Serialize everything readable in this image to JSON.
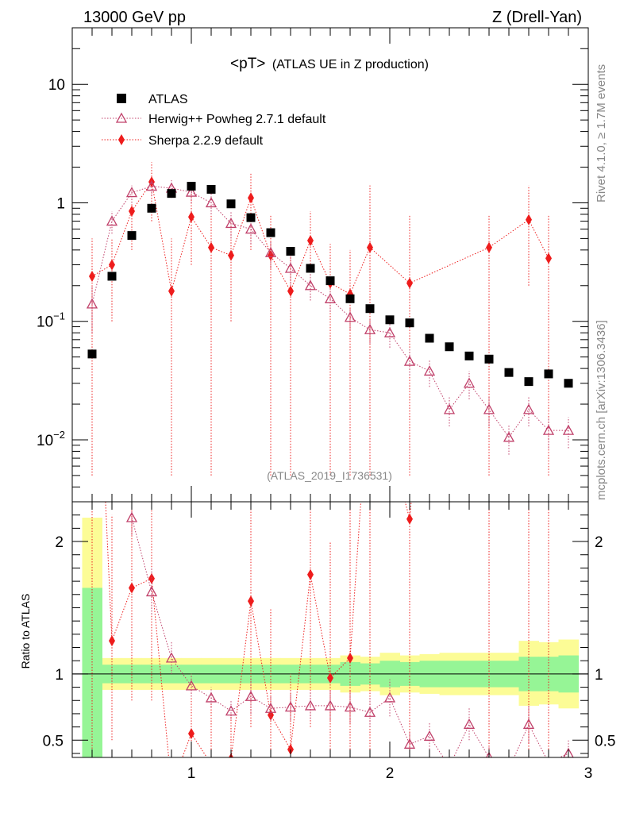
{
  "header": {
    "left": "13000 GeV pp",
    "right": "Z (Drell-Yan)"
  },
  "side_labels": {
    "rivet": "Rivet 4.1.0, ≥ 1.7M events",
    "mcplots": "mcplots.cern.ch [arXiv:1306.3436]"
  },
  "chart_data": {
    "type": "scatter",
    "title_main": "<pT>",
    "title_sub": "(ATLAS UE in Z production)",
    "analysis_id": "(ATLAS_2019_I1736531)",
    "x_range": [
      0.4,
      3.0
    ],
    "x_ticks": [
      1,
      2,
      3
    ],
    "x_tick_labels": [
      "1",
      "2",
      "3"
    ],
    "top_panel": {
      "yscale": "log",
      "ylim": [
        0.003,
        30
      ],
      "y_major_ticks": [
        0.01,
        0.1,
        1,
        10
      ],
      "y_tick_labels": [
        {
          "base": "10",
          "exp": "−2"
        },
        {
          "base": "10",
          "exp": "−1"
        },
        {
          "base": "1",
          "exp": ""
        },
        {
          "base": "10",
          "exp": ""
        }
      ]
    },
    "ratio_panel": {
      "ylabel": "Ratio to ATLAS",
      "ylim": [
        0.37,
        2.3
      ],
      "y_ticks": [
        0.5,
        1,
        2
      ],
      "y_tick_labels": [
        "0.5",
        "1",
        "2"
      ]
    },
    "legend": [
      {
        "label": "ATLAS",
        "marker": "square",
        "color": "#000000"
      },
      {
        "label": "Herwig++ Powheg 2.7.1 default",
        "marker": "triangle-open",
        "color": "#c0406a"
      },
      {
        "label": "Sherpa 2.2.9 default",
        "marker": "diamond",
        "color": "#ee1c1c"
      }
    ],
    "colors": {
      "band_inner": "#96f596",
      "band_outer": "#fcfc96",
      "herwig": "#c0406a",
      "sherpa": "#ee1c1c"
    },
    "atlas": [
      [
        0.5,
        0.053
      ],
      [
        0.6,
        0.24
      ],
      [
        0.7,
        0.53
      ],
      [
        0.8,
        0.9
      ],
      [
        0.9,
        1.2
      ],
      [
        1.0,
        1.38
      ],
      [
        1.1,
        1.3
      ],
      [
        1.2,
        0.98
      ],
      [
        1.3,
        0.75
      ],
      [
        1.4,
        0.56
      ],
      [
        1.5,
        0.39
      ],
      [
        1.6,
        0.28
      ],
      [
        1.7,
        0.22
      ],
      [
        1.8,
        0.155
      ],
      [
        1.9,
        0.128
      ],
      [
        2.0,
        0.103
      ],
      [
        2.1,
        0.097
      ],
      [
        2.2,
        0.072
      ],
      [
        2.3,
        0.061
      ],
      [
        2.4,
        0.051
      ],
      [
        2.5,
        0.048
      ],
      [
        2.6,
        0.037
      ],
      [
        2.7,
        0.031
      ],
      [
        2.8,
        0.036
      ],
      [
        2.9,
        0.03
      ]
    ],
    "herwig": [
      [
        0.5,
        0.14,
        0.08,
        0.2
      ],
      [
        0.6,
        0.7,
        0.55,
        0.85
      ],
      [
        0.7,
        1.22,
        1.0,
        1.4
      ],
      [
        0.8,
        1.38,
        1.15,
        1.6
      ],
      [
        0.9,
        1.33,
        1.1,
        1.55
      ],
      [
        1.0,
        1.23,
        1.0,
        1.45
      ],
      [
        1.1,
        1.0,
        0.8,
        1.2
      ],
      [
        1.2,
        0.67,
        0.5,
        0.85
      ],
      [
        1.3,
        0.6,
        0.45,
        0.75
      ],
      [
        1.4,
        0.38,
        0.28,
        0.48
      ],
      [
        1.5,
        0.28,
        0.2,
        0.36
      ],
      [
        1.6,
        0.2,
        0.15,
        0.26
      ],
      [
        1.7,
        0.155,
        0.12,
        0.19
      ],
      [
        1.8,
        0.108,
        0.085,
        0.13
      ],
      [
        1.9,
        0.085,
        0.065,
        0.105
      ],
      [
        2.0,
        0.08,
        0.06,
        0.1
      ],
      [
        2.1,
        0.046,
        0.035,
        0.058
      ],
      [
        2.2,
        0.038,
        0.028,
        0.048
      ],
      [
        2.3,
        0.018,
        0.013,
        0.023
      ],
      [
        2.4,
        0.03,
        0.022,
        0.038
      ],
      [
        2.5,
        0.018,
        0.013,
        0.023
      ],
      [
        2.6,
        0.0105,
        0.0075,
        0.0135
      ],
      [
        2.7,
        0.018,
        0.013,
        0.023
      ],
      [
        2.8,
        0.012,
        0.0085,
        0.0155
      ],
      [
        2.9,
        0.012,
        0.0085,
        0.0155
      ]
    ],
    "sherpa": [
      [
        0.5,
        0.24,
        0.005,
        0.5
      ],
      [
        0.6,
        0.3,
        0.1,
        0.5
      ],
      [
        0.7,
        0.85,
        0.4,
        1.3
      ],
      [
        0.8,
        1.5,
        0.7,
        2.2
      ],
      [
        0.9,
        0.18,
        0.005,
        0.5
      ],
      [
        1.0,
        0.76,
        0.3,
        1.3
      ],
      [
        1.1,
        0.42,
        0.005,
        1.0
      ],
      [
        1.2,
        0.36,
        0.1,
        0.7
      ],
      [
        1.3,
        1.1,
        0.4,
        1.8
      ],
      [
        1.4,
        0.36,
        0.005,
        0.8
      ],
      [
        1.5,
        0.18,
        0.005,
        0.4
      ],
      [
        1.6,
        0.48,
        0.15,
        0.85
      ],
      [
        1.7,
        0.21,
        0.005,
        0.45
      ],
      [
        1.8,
        0.17,
        0.005,
        0.4
      ],
      [
        1.9,
        0.42,
        0.005,
        1.4
      ],
      [
        2.1,
        0.21,
        0.005,
        0.8
      ],
      [
        2.5,
        0.42,
        0.005,
        0.8
      ],
      [
        2.7,
        0.72,
        0.2,
        1.4
      ],
      [
        2.8,
        0.34,
        0.005,
        0.8
      ]
    ],
    "ratio_band": [
      [
        0.45,
        0.55,
        0.34,
        1.65,
        0.24,
        2.18
      ],
      [
        0.55,
        0.65,
        0.93,
        1.07,
        0.88,
        1.12
      ],
      [
        0.65,
        0.75,
        0.93,
        1.07,
        0.88,
        1.12
      ],
      [
        0.75,
        0.85,
        0.93,
        1.07,
        0.88,
        1.12
      ],
      [
        0.85,
        0.95,
        0.93,
        1.07,
        0.88,
        1.12
      ],
      [
        0.95,
        1.05,
        0.93,
        1.07,
        0.88,
        1.12
      ],
      [
        1.05,
        1.15,
        0.93,
        1.07,
        0.88,
        1.12
      ],
      [
        1.15,
        1.25,
        0.93,
        1.07,
        0.88,
        1.12
      ],
      [
        1.25,
        1.35,
        0.93,
        1.07,
        0.88,
        1.12
      ],
      [
        1.35,
        1.45,
        0.93,
        1.07,
        0.88,
        1.12
      ],
      [
        1.45,
        1.55,
        0.93,
        1.07,
        0.88,
        1.12
      ],
      [
        1.55,
        1.65,
        0.93,
        1.07,
        0.88,
        1.12
      ],
      [
        1.65,
        1.75,
        0.93,
        1.07,
        0.88,
        1.12
      ],
      [
        1.75,
        1.85,
        0.91,
        1.09,
        0.86,
        1.14
      ],
      [
        1.85,
        1.95,
        0.92,
        1.08,
        0.87,
        1.13
      ],
      [
        1.95,
        2.05,
        0.9,
        1.1,
        0.84,
        1.16
      ],
      [
        2.05,
        2.15,
        0.91,
        1.09,
        0.86,
        1.14
      ],
      [
        2.15,
        2.25,
        0.9,
        1.1,
        0.85,
        1.15
      ],
      [
        2.25,
        2.35,
        0.9,
        1.1,
        0.84,
        1.16
      ],
      [
        2.35,
        2.45,
        0.9,
        1.1,
        0.84,
        1.16
      ],
      [
        2.45,
        2.55,
        0.9,
        1.1,
        0.84,
        1.16
      ],
      [
        2.55,
        2.65,
        0.9,
        1.1,
        0.84,
        1.16
      ],
      [
        2.65,
        2.75,
        0.87,
        1.13,
        0.76,
        1.25
      ],
      [
        2.75,
        2.85,
        0.87,
        1.13,
        0.77,
        1.24
      ],
      [
        2.85,
        2.95,
        0.86,
        1.14,
        0.74,
        1.26
      ]
    ],
    "herwig_ratio": [
      [
        0.7,
        2.18,
        2.05,
        2.3
      ],
      [
        0.8,
        1.62,
        1.45,
        1.8
      ],
      [
        0.9,
        1.12,
        1.0,
        1.25
      ],
      [
        1.0,
        0.91,
        0.83,
        1.0
      ],
      [
        1.1,
        0.82,
        0.75,
        0.9
      ],
      [
        1.2,
        0.72,
        0.66,
        0.8
      ],
      [
        1.3,
        0.83,
        0.7,
        0.97
      ],
      [
        1.4,
        0.74,
        0.65,
        0.84
      ],
      [
        1.5,
        0.75,
        0.65,
        0.86
      ],
      [
        1.6,
        0.76,
        0.66,
        0.87
      ],
      [
        1.7,
        0.76,
        0.65,
        0.87
      ],
      [
        1.8,
        0.75,
        0.63,
        0.87
      ],
      [
        1.9,
        0.71,
        0.6,
        0.82
      ],
      [
        2.0,
        0.82,
        0.68,
        0.96
      ],
      [
        2.1,
        0.47,
        0.38,
        0.56
      ],
      [
        2.2,
        0.53,
        0.43,
        0.63
      ],
      [
        2.3,
        0.3,
        0.24,
        0.37
      ],
      [
        2.4,
        0.62,
        0.5,
        0.74
      ],
      [
        2.5,
        0.37,
        0.29,
        0.45
      ],
      [
        2.6,
        0.28,
        0.22,
        0.35
      ],
      [
        2.7,
        0.62,
        0.48,
        0.76
      ],
      [
        2.8,
        0.33,
        0.25,
        0.41
      ],
      [
        2.9,
        0.4,
        0.3,
        0.5
      ]
    ],
    "sherpa_ratio": [
      [
        0.5,
        4.5,
        0.1,
        9.0
      ],
      [
        0.6,
        1.25,
        0.5,
        2.2
      ],
      [
        0.7,
        1.65,
        0.8,
        2.5
      ],
      [
        0.8,
        1.72,
        0.8,
        2.6
      ],
      [
        0.9,
        0.15,
        0.01,
        0.4
      ],
      [
        1.0,
        0.55,
        0.2,
        1.0
      ],
      [
        1.1,
        0.32,
        0.01,
        0.8
      ],
      [
        1.2,
        0.36,
        0.1,
        0.7
      ],
      [
        1.3,
        1.55,
        0.6,
        2.5
      ],
      [
        1.4,
        0.69,
        0.01,
        1.5
      ],
      [
        1.5,
        0.43,
        0.01,
        1.0
      ],
      [
        1.6,
        1.75,
        0.6,
        3.0
      ],
      [
        1.7,
        0.97,
        0.01,
        2.0
      ],
      [
        1.8,
        1.12,
        0.01,
        2.5
      ],
      [
        1.9,
        3.3,
        0.01,
        9.0
      ],
      [
        2.1,
        2.17,
        0.01,
        8.0
      ],
      [
        2.5,
        8.7,
        0.01,
        16.0
      ],
      [
        2.7,
        23.0,
        0.01,
        45.0
      ],
      [
        2.8,
        9.4,
        0.01,
        20.0
      ]
    ]
  }
}
